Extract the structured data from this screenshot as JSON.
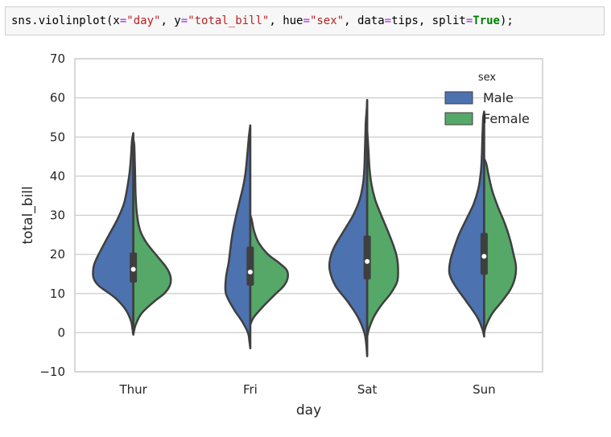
{
  "code": {
    "tokens": [
      {
        "t": "sns.violinplot(x",
        "c": "plain"
      },
      {
        "t": "=",
        "c": "op"
      },
      {
        "t": "\"day\"",
        "c": "str"
      },
      {
        "t": ", y",
        "c": "plain"
      },
      {
        "t": "=",
        "c": "op"
      },
      {
        "t": "\"total_bill\"",
        "c": "str"
      },
      {
        "t": ", hue",
        "c": "plain"
      },
      {
        "t": "=",
        "c": "op"
      },
      {
        "t": "\"sex\"",
        "c": "str"
      },
      {
        "t": ", data",
        "c": "plain"
      },
      {
        "t": "=",
        "c": "op"
      },
      {
        "t": "tips, split",
        "c": "plain"
      },
      {
        "t": "=",
        "c": "op"
      },
      {
        "t": "True",
        "c": "kw"
      },
      {
        "t": ");",
        "c": "plain"
      }
    ]
  },
  "colors": {
    "male": "#4c72b0",
    "female": "#55a868",
    "outline": "#3f3f3f",
    "grid": "#cccccc",
    "axes": "#cccccc"
  },
  "chart_data": {
    "type": "violin",
    "split": true,
    "xlabel": "day",
    "ylabel": "total_bill",
    "categories": [
      "Thur",
      "Fri",
      "Sat",
      "Sun"
    ],
    "ylim": [
      -10,
      70
    ],
    "yticks": [
      -10,
      0,
      10,
      20,
      30,
      40,
      50,
      60,
      70
    ],
    "grid": true,
    "legend": {
      "title": "sex",
      "placement": "top-right",
      "entries": [
        "Male",
        "Female"
      ]
    },
    "series": [
      {
        "name": "Male",
        "violins": [
          {
            "category": "Thur",
            "median": 16.2,
            "q1": 12.8,
            "q3": 20.5,
            "profile": [
              [
                -0.5,
                0
              ],
              [
                1,
                0.02
              ],
              [
                3,
                0.05
              ],
              [
                6,
                0.17
              ],
              [
                9,
                0.4
              ],
              [
                12,
                0.74
              ],
              [
                14,
                0.85
              ],
              [
                16,
                0.86
              ],
              [
                18,
                0.82
              ],
              [
                21,
                0.7
              ],
              [
                25,
                0.52
              ],
              [
                29,
                0.34
              ],
              [
                33,
                0.2
              ],
              [
                37,
                0.13
              ],
              [
                41,
                0.08
              ],
              [
                45,
                0.05
              ],
              [
                49,
                0.03
              ],
              [
                51,
                0
              ]
            ]
          },
          {
            "category": "Fri",
            "median": 15.5,
            "q1": 12.0,
            "q3": 22.0,
            "profile": [
              [
                -4,
                0
              ],
              [
                -2,
                0.02
              ],
              [
                0,
                0.05
              ],
              [
                3,
                0.18
              ],
              [
                6,
                0.35
              ],
              [
                10,
                0.52
              ],
              [
                14,
                0.52
              ],
              [
                18,
                0.46
              ],
              [
                22,
                0.42
              ],
              [
                26,
                0.37
              ],
              [
                30,
                0.3
              ],
              [
                34,
                0.22
              ],
              [
                38,
                0.14
              ],
              [
                42,
                0.09
              ],
              [
                46,
                0.06
              ],
              [
                50,
                0.03
              ],
              [
                53,
                0
              ]
            ]
          },
          {
            "category": "Sat",
            "median": 18.2,
            "q1": 13.6,
            "q3": 24.8,
            "profile": [
              [
                -6,
                0
              ],
              [
                -3,
                0.02
              ],
              [
                0,
                0.06
              ],
              [
                4,
                0.2
              ],
              [
                8,
                0.42
              ],
              [
                12,
                0.68
              ],
              [
                16,
                0.8
              ],
              [
                19,
                0.79
              ],
              [
                22,
                0.7
              ],
              [
                26,
                0.5
              ],
              [
                30,
                0.3
              ],
              [
                34,
                0.16
              ],
              [
                38,
                0.09
              ],
              [
                42,
                0.06
              ],
              [
                46,
                0.05
              ],
              [
                50,
                0.04
              ],
              [
                54,
                0.03
              ],
              [
                57,
                0.01
              ],
              [
                59.5,
                0
              ]
            ]
          },
          {
            "category": "Sun",
            "median": 19.5,
            "q1": 14.8,
            "q3": 25.5,
            "profile": [
              [
                -1,
                0
              ],
              [
                1,
                0.04
              ],
              [
                4,
                0.15
              ],
              [
                8,
                0.38
              ],
              [
                12,
                0.62
              ],
              [
                15,
                0.74
              ],
              [
                18,
                0.73
              ],
              [
                21,
                0.66
              ],
              [
                25,
                0.54
              ],
              [
                29,
                0.38
              ],
              [
                33,
                0.22
              ],
              [
                37,
                0.12
              ],
              [
                41,
                0.07
              ],
              [
                45,
                0.05
              ],
              [
                49,
                0.04
              ],
              [
                52,
                0.03
              ],
              [
                55,
                0.02
              ],
              [
                56.5,
                0
              ]
            ]
          }
        ]
      },
      {
        "name": "Female",
        "violins": [
          {
            "category": "Thur",
            "median": 16.2,
            "q1": 12.8,
            "q3": 20.5,
            "profile": [
              [
                -0.5,
                0
              ],
              [
                2,
                0.05
              ],
              [
                5,
                0.18
              ],
              [
                8,
                0.45
              ],
              [
                10,
                0.66
              ],
              [
                12,
                0.78
              ],
              [
                14,
                0.8
              ],
              [
                16,
                0.74
              ],
              [
                18,
                0.62
              ],
              [
                20,
                0.48
              ],
              [
                23,
                0.28
              ],
              [
                26,
                0.15
              ],
              [
                30,
                0.08
              ],
              [
                35,
                0.05
              ],
              [
                40,
                0.04
              ],
              [
                44,
                0.03
              ],
              [
                48,
                0.02
              ],
              [
                49.5,
                0
              ]
            ]
          },
          {
            "category": "Fri",
            "median": 15.5,
            "q1": 12.0,
            "q3": 22.0,
            "profile": [
              [
                2,
                0
              ],
              [
                4,
                0.08
              ],
              [
                7,
                0.3
              ],
              [
                10,
                0.55
              ],
              [
                12,
                0.72
              ],
              [
                14,
                0.8
              ],
              [
                16,
                0.78
              ],
              [
                18,
                0.6
              ],
              [
                20,
                0.38
              ],
              [
                23,
                0.18
              ],
              [
                26,
                0.08
              ],
              [
                29,
                0.03
              ],
              [
                30,
                0
              ]
            ]
          },
          {
            "category": "Sat",
            "median": 18.2,
            "q1": 13.6,
            "q3": 24.8,
            "profile": [
              [
                -1,
                0
              ],
              [
                1,
                0.04
              ],
              [
                4,
                0.14
              ],
              [
                7,
                0.3
              ],
              [
                10,
                0.5
              ],
              [
                13,
                0.64
              ],
              [
                16,
                0.66
              ],
              [
                19,
                0.64
              ],
              [
                22,
                0.57
              ],
              [
                26,
                0.44
              ],
              [
                30,
                0.3
              ],
              [
                34,
                0.17
              ],
              [
                38,
                0.09
              ],
              [
                42,
                0.05
              ],
              [
                46,
                0.03
              ],
              [
                50,
                0.01
              ],
              [
                52,
                0
              ]
            ]
          },
          {
            "category": "Sun",
            "median": 19.5,
            "q1": 14.8,
            "q3": 25.5,
            "profile": [
              [
                0,
                0
              ],
              [
                2,
                0.05
              ],
              [
                5,
                0.18
              ],
              [
                8,
                0.38
              ],
              [
                11,
                0.56
              ],
              [
                14,
                0.66
              ],
              [
                17,
                0.68
              ],
              [
                20,
                0.63
              ],
              [
                24,
                0.55
              ],
              [
                28,
                0.44
              ],
              [
                32,
                0.3
              ],
              [
                36,
                0.18
              ],
              [
                40,
                0.1
              ],
              [
                43,
                0.05
              ],
              [
                44.5,
                0
              ]
            ]
          }
        ]
      }
    ]
  }
}
